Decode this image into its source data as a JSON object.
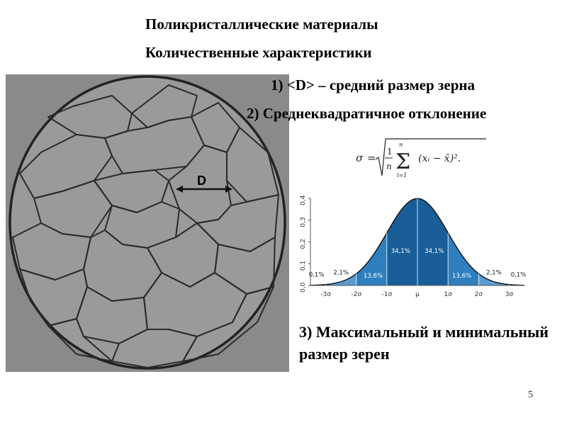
{
  "slide": {
    "title_line1": "Поликристаллические материалы",
    "title_line2": "Количественные характеристики",
    "item1": "1) <D> – средний размер зерна",
    "item2": "2) Среднеквадратичное отклонение",
    "item3": "3) Максимальный и минимальный размер зерен",
    "page_number": "5"
  },
  "micrograph": {
    "d_label": "D"
  },
  "formula": {
    "sigma": "σ",
    "equals": "=",
    "one": "1",
    "n": "n",
    "sum_top": "n",
    "sum_bottom": "i=1",
    "term": "(xᵢ − x̄)²."
  },
  "chart_data": {
    "type": "area",
    "x_ticks": [
      "-3σ",
      "-2σ",
      "-1σ",
      "μ",
      "1σ",
      "2σ",
      "3σ"
    ],
    "y_ticks": [
      "0,0",
      "0,1",
      "0,2",
      "0,3",
      "0,4"
    ],
    "ylim": [
      0,
      0.4
    ],
    "xlim": [
      -3.5,
      3.5
    ],
    "bands": [
      {
        "from": -3,
        "to": -2,
        "label": "2,1%",
        "color": "#5b9bd0"
      },
      {
        "from": -2,
        "to": -1,
        "label": "13,6%",
        "color": "#2f7fbf"
      },
      {
        "from": -1,
        "to": 0,
        "label": "34,1%",
        "color": "#1a5e99"
      },
      {
        "from": 0,
        "to": 1,
        "label": "34,1%",
        "color": "#1a5e99"
      },
      {
        "from": 1,
        "to": 2,
        "label": "13,6%",
        "color": "#2f7fbf"
      },
      {
        "from": 2,
        "to": 3,
        "label": "2,1%",
        "color": "#5b9bd0"
      }
    ],
    "tail_labels": [
      "0,1%",
      "0,1%"
    ]
  }
}
